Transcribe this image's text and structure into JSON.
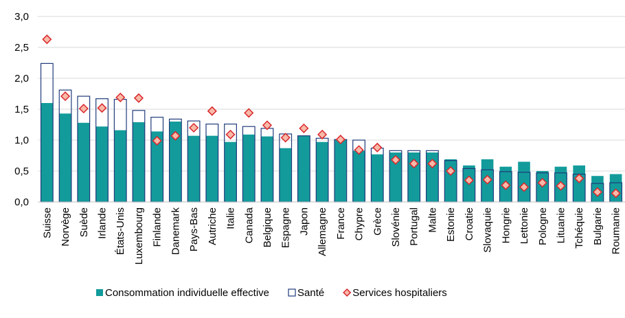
{
  "chart_data": {
    "type": "bar",
    "categories": [
      "Suisse",
      "Norvège",
      "Suède",
      "Irlande",
      "États-Unis",
      "Luxembourg",
      "Finlande",
      "Danemark",
      "Pays-Bas",
      "Autriche",
      "Italie",
      "Canada",
      "Belgique",
      "Espagne",
      "Japon",
      "Allemagne",
      "France",
      "Chypre",
      "Grèce",
      "Slovénie",
      "Portugal",
      "Malte",
      "Estonie",
      "Croatie",
      "Slovaquie",
      "Hongrie",
      "Lettonie",
      "Pologne",
      "Lituanie",
      "Tchéquie",
      "Bulgarie",
      "Roumanie"
    ],
    "series": [
      {
        "name": "Consommation individuelle effective",
        "color": "#139b9b",
        "style": "filled",
        "values": [
          1.6,
          1.43,
          1.28,
          1.22,
          1.16,
          1.29,
          1.14,
          1.3,
          1.07,
          1.07,
          0.97,
          1.09,
          1.06,
          0.87,
          1.07,
          0.97,
          1.01,
          0.83,
          0.77,
          0.8,
          0.8,
          0.8,
          0.69,
          0.59,
          0.69,
          0.57,
          0.65,
          0.5,
          0.57,
          0.59,
          0.42,
          0.45
        ]
      },
      {
        "name": "Santé",
        "color": "#1f3a7a",
        "style": "outline",
        "values": [
          2.24,
          1.81,
          1.71,
          1.67,
          1.66,
          1.48,
          1.37,
          1.34,
          1.31,
          1.26,
          1.26,
          1.22,
          1.19,
          1.1,
          1.07,
          1.03,
          1.01,
          1.0,
          0.87,
          0.83,
          0.83,
          0.83,
          0.67,
          0.54,
          0.52,
          0.49,
          0.48,
          0.47,
          0.47,
          0.45,
          0.3,
          0.31
        ]
      },
      {
        "name": "Services hospitaliers",
        "color": "#d9262b",
        "style": "diamond",
        "values": [
          2.63,
          1.71,
          1.51,
          1.52,
          1.69,
          1.68,
          0.99,
          1.07,
          1.2,
          1.47,
          1.09,
          1.44,
          1.24,
          1.04,
          1.19,
          1.09,
          1.01,
          0.84,
          0.88,
          0.68,
          0.62,
          0.62,
          0.5,
          0.35,
          0.36,
          0.27,
          0.24,
          0.31,
          0.26,
          0.38,
          0.16,
          0.14
        ]
      }
    ],
    "ylim": [
      0,
      3
    ],
    "yticks": [
      {
        "value": 0,
        "label": "0,0"
      },
      {
        "value": 0.5,
        "label": "0,5"
      },
      {
        "value": 1,
        "label": "1,0"
      },
      {
        "value": 1.5,
        "label": "1,5"
      },
      {
        "value": 2,
        "label": "2,0"
      },
      {
        "value": 2.5,
        "label": "2,5"
      },
      {
        "value": 3,
        "label": "3,0"
      }
    ],
    "grid": true
  }
}
